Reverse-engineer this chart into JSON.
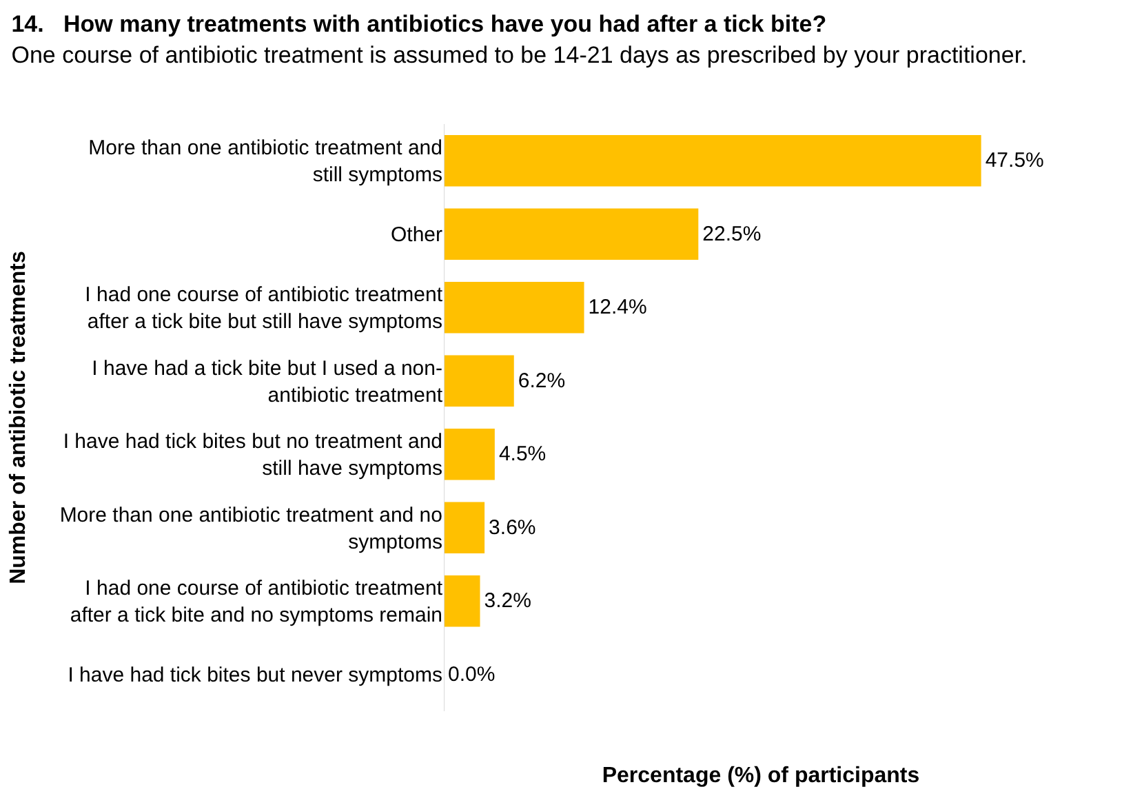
{
  "chart_data": {
    "type": "bar",
    "orientation": "horizontal",
    "title": "14.   How many treatments with antibiotics have you had after a tick bite?",
    "subtitle": "One course of antibiotic treatment is assumed to be 14-21 days as prescribed by your practitioner.",
    "xlabel": "Percentage (%) of participants",
    "ylabel": "Number of antibiotic treatments",
    "categories": [
      "More than one antibiotic treatment and still symptoms",
      "Other",
      "I had one course of antibiotic treatment after a tick bite but still have symptoms",
      "I have had a tick bite but I used a non-antibiotic treatment",
      "I have had tick bites but no treatment and still have symptoms",
      "More than one antibiotic treatment and no symptoms",
      "I had one course of antibiotic treatment after a tick bite and no symptoms remain",
      "I have had tick bites but never symptoms"
    ],
    "values": [
      47.5,
      22.5,
      12.4,
      6.2,
      4.5,
      3.6,
      3.2,
      0.0
    ],
    "value_labels": [
      "47.5%",
      "22.5%",
      "12.4%",
      "6.2%",
      "4.5%",
      "3.6%",
      "3.2%",
      "0.0%"
    ],
    "color": "#ffc000",
    "tick_labels": "y",
    "legend": false
  }
}
